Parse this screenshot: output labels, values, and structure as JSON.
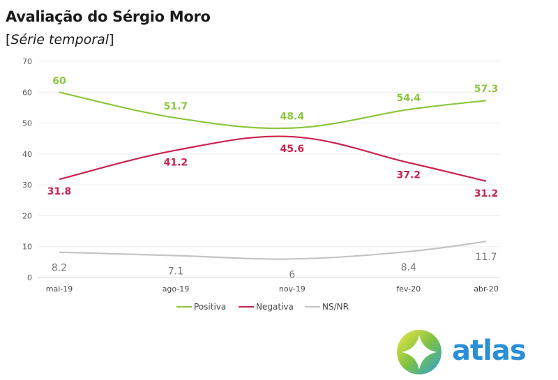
{
  "header": {
    "title": "Avaliação do Sérgio Moro",
    "subtitle_open": "[",
    "subtitle_text": "Série temporal",
    "subtitle_close": "]"
  },
  "chart_data": {
    "type": "line",
    "title": "Avaliação do Sérgio Moro",
    "subtitle": "[Série temporal]",
    "xlabel": "",
    "ylabel": "",
    "categories": [
      "mai-19",
      "ago-19",
      "nov-19",
      "fev-20",
      "abr-20"
    ],
    "x_months": [
      0,
      3,
      6,
      9,
      11
    ],
    "ylim": [
      0,
      70
    ],
    "yticks": [
      0,
      10,
      20,
      30,
      40,
      50,
      60,
      70
    ],
    "grid": true,
    "legend": "bottom",
    "series": [
      {
        "name": "Positiva",
        "color": "#8dc63f",
        "values": [
          60,
          51.7,
          48.4,
          54.4,
          57.3
        ],
        "labels": [
          "60",
          "51.7",
          "48.4",
          "54.4",
          "57.3"
        ],
        "label_pos": "above"
      },
      {
        "name": "Negativa",
        "color": "#c8234f",
        "values": [
          31.8,
          41.2,
          45.6,
          37.2,
          31.2
        ],
        "labels": [
          "31.8",
          "41.2",
          "45.6",
          "37.2",
          "31.2"
        ],
        "label_pos": "below"
      },
      {
        "name": "NS/NR",
        "color": "#c4c4c4",
        "values": [
          8.2,
          7.1,
          6,
          8.4,
          11.7
        ],
        "labels": [
          "8.2",
          "7.1",
          "6",
          "8.4",
          "11.7"
        ],
        "label_pos": "below"
      }
    ]
  },
  "brand": {
    "name": "atlas",
    "color": "#2a8fd6"
  }
}
